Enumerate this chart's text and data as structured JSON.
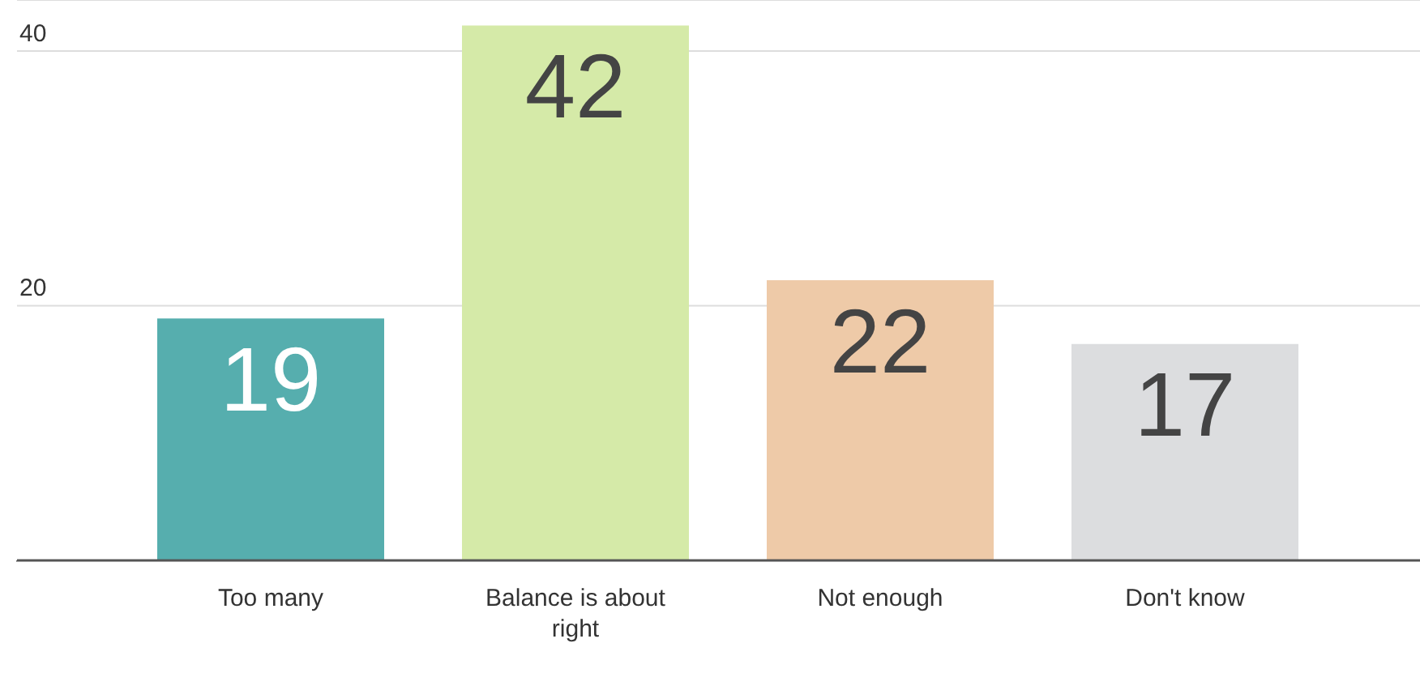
{
  "chart_data": {
    "type": "bar",
    "categories": [
      "Too many",
      "Balance is about right",
      "Not enough",
      "Don't know"
    ],
    "values": [
      19,
      42,
      22,
      17
    ],
    "colors": [
      "#56aeae",
      "#d5eaa8",
      "#eecaa8",
      "#dcdddf"
    ],
    "ylim": [
      0,
      44
    ],
    "yticks": [
      20,
      40
    ],
    "grid": "y",
    "data_labels": true
  }
}
